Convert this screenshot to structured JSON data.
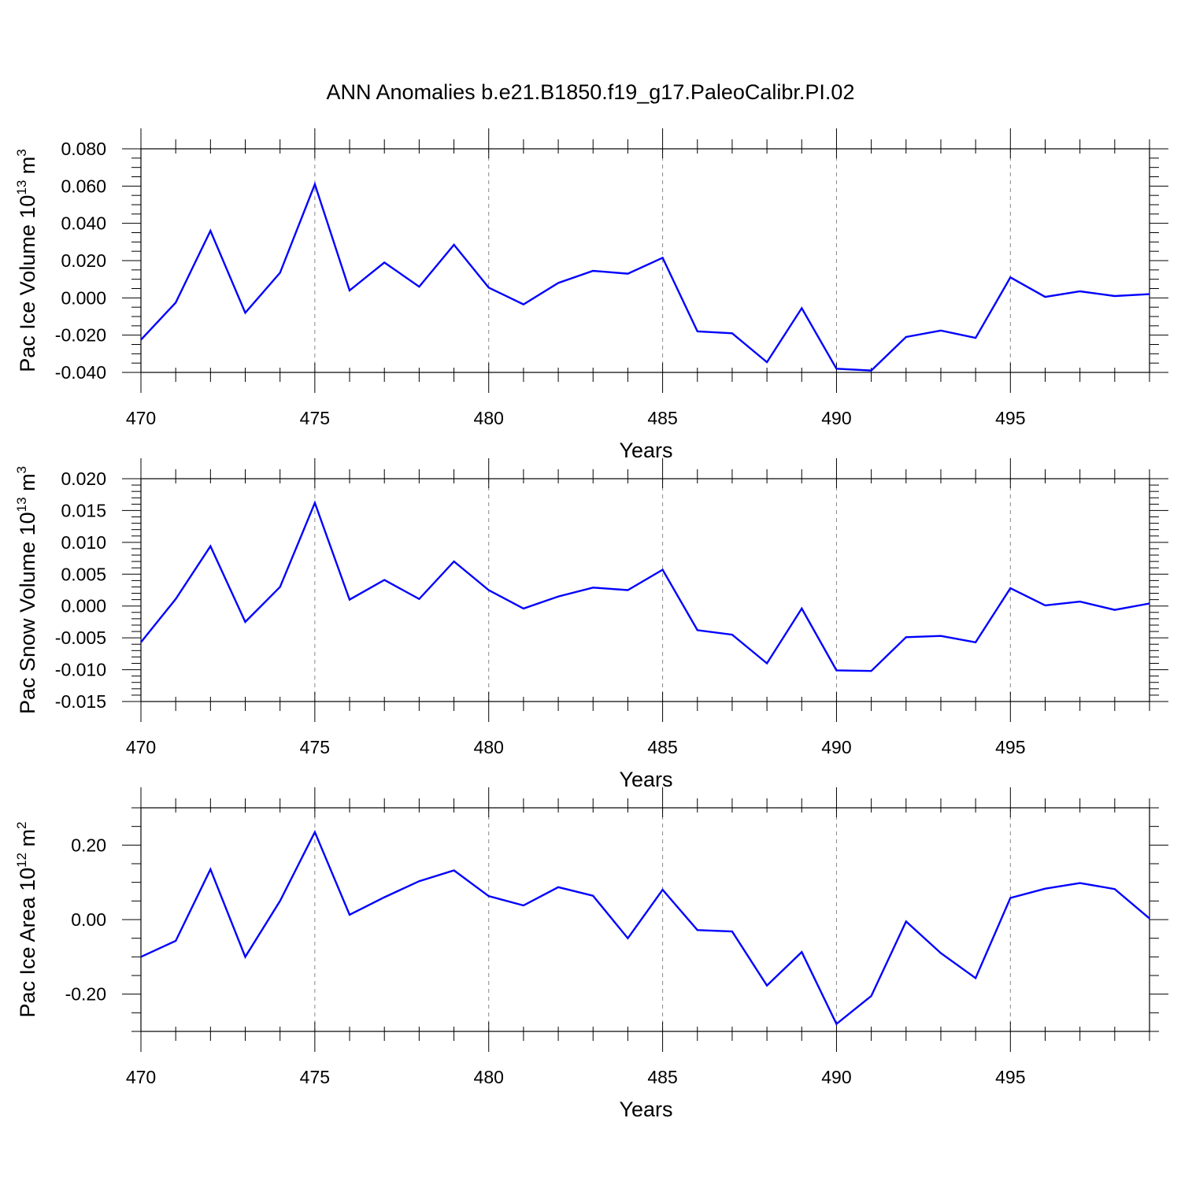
{
  "figure": {
    "title": "ANN Anomalies b.e21.B1850.f19_g17.PaleoCalibr.PI.02",
    "line_color": "#0000ff"
  },
  "chart_data": [
    {
      "type": "line",
      "xlabel": "Years",
      "ylabel": {
        "prefix": "Pac Ice Volume 10",
        "exponent": "13",
        "unit": " m",
        "unit_exponent": "3"
      },
      "xlim": [
        470,
        499
      ],
      "ylim": [
        -0.04,
        0.08
      ],
      "x_ticks": [
        470,
        475,
        480,
        485,
        490,
        495
      ],
      "x_tick_labels": [
        "470",
        "475",
        "480",
        "485",
        "490",
        "495"
      ],
      "y_ticks": [
        -0.04,
        -0.02,
        0.0,
        0.02,
        0.04,
        0.06,
        0.08
      ],
      "y_tick_labels": [
        "-0.040",
        "-0.020",
        "0.000",
        "0.020",
        "0.040",
        "0.060",
        "0.080"
      ],
      "y_minor_step": 0.005,
      "grid": "vertical dashed at major x ticks",
      "series": [
        {
          "x": [
            470,
            471,
            472,
            473,
            474,
            475,
            476,
            477,
            478,
            479,
            480,
            481,
            482,
            483,
            484,
            485,
            486,
            487,
            488,
            489,
            490,
            491,
            492,
            493,
            494,
            495,
            496,
            497,
            498,
            499
          ],
          "values": [
            -0.0225,
            -0.0025,
            0.036,
            -0.008,
            0.0135,
            0.061,
            0.004,
            0.019,
            0.006,
            0.0285,
            0.0055,
            -0.0035,
            0.008,
            0.0145,
            0.013,
            0.0215,
            -0.018,
            -0.019,
            -0.0345,
            -0.0055,
            -0.038,
            -0.039,
            -0.021,
            -0.0175,
            -0.0215,
            0.011,
            0.0005,
            0.0035,
            0.001,
            0.002
          ]
        }
      ]
    },
    {
      "type": "line",
      "xlabel": "Years",
      "ylabel": {
        "prefix": "Pac Snow Volume 10",
        "exponent": "13",
        "unit": " m",
        "unit_exponent": "3"
      },
      "xlim": [
        470,
        499
      ],
      "ylim": [
        -0.015,
        0.02
      ],
      "x_ticks": [
        470,
        475,
        480,
        485,
        490,
        495
      ],
      "x_tick_labels": [
        "470",
        "475",
        "480",
        "485",
        "490",
        "495"
      ],
      "y_ticks": [
        -0.015,
        -0.01,
        -0.005,
        0.0,
        0.005,
        0.01,
        0.015,
        0.02
      ],
      "y_tick_labels": [
        "-0.015",
        "-0.010",
        "-0.005",
        "0.000",
        "0.005",
        "0.010",
        "0.015",
        "0.020"
      ],
      "y_minor_step": 0.001,
      "grid": "vertical dashed at major x ticks",
      "series": [
        {
          "x": [
            470,
            471,
            472,
            473,
            474,
            475,
            476,
            477,
            478,
            479,
            480,
            481,
            482,
            483,
            484,
            485,
            486,
            487,
            488,
            489,
            490,
            491,
            492,
            493,
            494,
            495,
            496,
            497,
            498,
            499
          ],
          "values": [
            -0.0057,
            0.0011,
            0.0094,
            -0.0025,
            0.003,
            0.0162,
            0.001,
            0.0041,
            0.0011,
            0.007,
            0.0025,
            -0.0004,
            0.0015,
            0.0029,
            0.0025,
            0.0057,
            -0.0038,
            -0.0045,
            -0.009,
            -0.0004,
            -0.0101,
            -0.0102,
            -0.0049,
            -0.0047,
            -0.0057,
            0.0028,
            0.0001,
            0.0007,
            -0.0006,
            0.0004
          ]
        }
      ]
    },
    {
      "type": "line",
      "xlabel": "Years",
      "ylabel": {
        "prefix": "Pac Ice Area 10",
        "exponent": "12",
        "unit": " m",
        "unit_exponent": "2"
      },
      "xlim": [
        470,
        499
      ],
      "ylim": [
        -0.3,
        0.3
      ],
      "x_ticks": [
        470,
        475,
        480,
        485,
        490,
        495
      ],
      "x_tick_labels": [
        "470",
        "475",
        "480",
        "485",
        "490",
        "495"
      ],
      "y_ticks": [
        -0.2,
        0.0,
        0.2
      ],
      "y_tick_labels": [
        "-0.20",
        "0.00",
        "0.20"
      ],
      "y_minor_step": 0.05,
      "grid": "vertical dashed at major x ticks",
      "series": [
        {
          "x": [
            470,
            471,
            472,
            473,
            474,
            475,
            476,
            477,
            478,
            479,
            480,
            481,
            482,
            483,
            484,
            485,
            486,
            487,
            488,
            489,
            490,
            491,
            492,
            493,
            494,
            495,
            496,
            497,
            498,
            499
          ],
          "values": [
            -0.1,
            -0.057,
            0.135,
            -0.1,
            0.05,
            0.235,
            0.013,
            0.06,
            0.103,
            0.132,
            0.063,
            0.038,
            0.087,
            0.064,
            -0.05,
            0.08,
            -0.028,
            -0.032,
            -0.177,
            -0.087,
            -0.28,
            -0.205,
            -0.005,
            -0.09,
            -0.157,
            0.058,
            0.083,
            0.098,
            0.082,
            0.003
          ]
        }
      ]
    }
  ]
}
